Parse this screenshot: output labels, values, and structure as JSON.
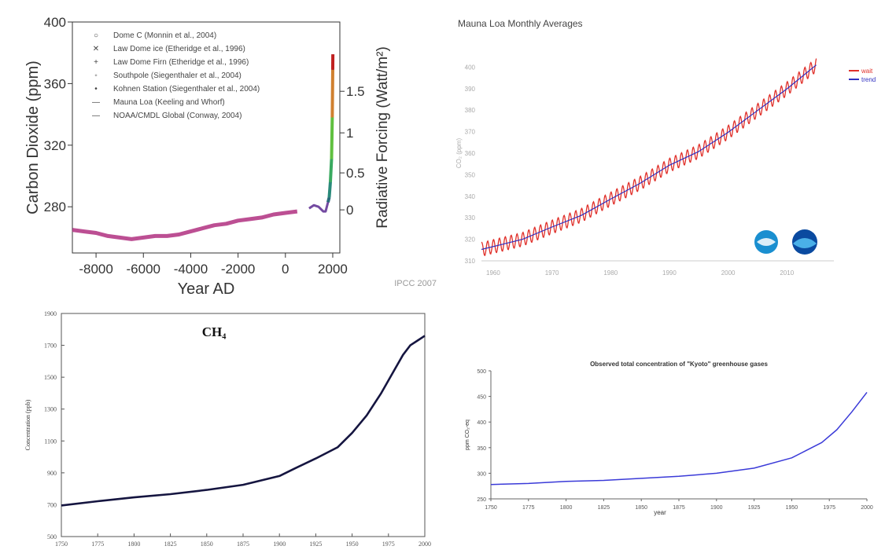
{
  "chart_data": [
    {
      "type": "line",
      "title": "",
      "ylabel": "Carbon Dioxide (ppm)",
      "y2label": "Radiative Forcing (Watt/m²)",
      "xlabel": "Year AD",
      "xlim": [
        -9000,
        2300
      ],
      "ylim": [
        250,
        400
      ],
      "xticks": [
        -8000,
        -6000,
        -4000,
        -2000,
        0,
        2000
      ],
      "yticks": [
        280,
        320,
        360,
        400
      ],
      "y2ticks": [
        "0",
        "0.5",
        "1",
        "1.5"
      ],
      "grid": false,
      "legend_position": "top-left",
      "legend": [
        "Dome C (Monnin et al., 2004)",
        "Law Dome ice (Etheridge et al., 1996)",
        "Law Dome Firn (Etheridge et al., 1996)",
        "Southpole (Siegenthaler et al., 2004)",
        "Kohnen Station (Siegenthaler et al., 2004)",
        "Mauna Loa (Keeling and Whorf)",
        "NOAA/CMDL Global (Conway, 2004)"
      ],
      "source": "IPCC 2007",
      "series": [
        {
          "name": "Dome C (Monnin et al., 2004)",
          "x": [
            -9000,
            -8500,
            -8000,
            -7500,
            -7000,
            -6500,
            -6000,
            -5500,
            -5000,
            -4500,
            -4000,
            -3500,
            -3000,
            -2500,
            -2000,
            -1500,
            -1000,
            -500,
            0,
            500
          ],
          "y": [
            265,
            264,
            263,
            261,
            260,
            259,
            260,
            261,
            261,
            262,
            264,
            266,
            268,
            269,
            271,
            272,
            273,
            275,
            276,
            277
          ]
        },
        {
          "name": "Law Dome ice (Etheridge et al., 1996)",
          "x": [
            1000,
            1200,
            1400,
            1600,
            1700,
            1800,
            1850,
            1900,
            1950,
            1960
          ],
          "y": [
            279,
            281,
            280,
            277,
            277,
            283,
            286,
            296,
            311,
            316
          ]
        },
        {
          "name": "Mauna Loa (Keeling and Whorf)",
          "x": [
            1958,
            1970,
            1980,
            1990,
            2000,
            2005
          ],
          "y": [
            315,
            325,
            338,
            354,
            369,
            379
          ]
        }
      ]
    },
    {
      "type": "line",
      "title": "Mauna Loa Monthly Averages",
      "ylabel": "CO₂ (ppm)",
      "xlabel": "",
      "xlim": [
        1958,
        2018
      ],
      "ylim": [
        310,
        410
      ],
      "xticks": [
        1960,
        1970,
        1980,
        1990,
        2000,
        2010
      ],
      "yticks": [
        310,
        320,
        330,
        340,
        350,
        360,
        370,
        380,
        390,
        400
      ],
      "grid": false,
      "legend_position": "top-right",
      "legend": [
        "wait",
        "trend"
      ],
      "series": [
        {
          "name": "wait",
          "color": "#e0302a",
          "x": [
            1958,
            1960,
            1965,
            1970,
            1975,
            1980,
            1985,
            1990,
            1995,
            2000,
            2005,
            2010,
            2015
          ],
          "y": [
            315.3,
            316.9,
            320.0,
            325.7,
            331.1,
            338.7,
            346.0,
            354.4,
            360.8,
            369.7,
            379.8,
            389.9,
            401.0
          ]
        },
        {
          "name": "trend",
          "color": "#3030c0",
          "x": [
            1958,
            1965,
            1970,
            1975,
            1980,
            1985,
            1990,
            1995,
            2000,
            2005,
            2010,
            2015
          ],
          "y": [
            315.3,
            320.0,
            325.7,
            331.1,
            338.7,
            346.0,
            354.4,
            360.8,
            369.7,
            379.8,
            389.9,
            401.0
          ]
        }
      ]
    },
    {
      "type": "line",
      "title": "CH₄",
      "ylabel": "Concentration (ppb)",
      "xlabel": "",
      "xlim": [
        1750,
        2000
      ],
      "ylim": [
        500,
        1900
      ],
      "xticks": [
        1750,
        1775,
        1800,
        1825,
        1850,
        1875,
        1900,
        1925,
        1950,
        1975,
        2000
      ],
      "yticks": [
        500,
        700,
        900,
        1100,
        1300,
        1500,
        1700,
        1900
      ],
      "grid": false,
      "series": [
        {
          "name": "",
          "color": "#151540",
          "x": [
            1750,
            1775,
            1800,
            1825,
            1850,
            1875,
            1900,
            1910,
            1925,
            1940,
            1950,
            1960,
            1970,
            1980,
            1985,
            1990,
            1995,
            2000
          ],
          "y": [
            695,
            722,
            746,
            766,
            793,
            825,
            880,
            925,
            990,
            1060,
            1150,
            1260,
            1400,
            1560,
            1640,
            1700,
            1730,
            1760
          ]
        }
      ]
    },
    {
      "type": "line",
      "title": "Observed total concentration of \"Kyoto\" greenhouse gases",
      "ylabel": "ppm CO₂-eq",
      "xlabel": "year",
      "xlim": [
        1750,
        2000
      ],
      "ylim": [
        250,
        500
      ],
      "xticks": [
        1750,
        1775,
        1800,
        1825,
        1850,
        1875,
        1900,
        1925,
        1950,
        1975,
        2000
      ],
      "yticks": [
        250,
        300,
        350,
        400,
        450,
        500
      ],
      "grid": false,
      "series": [
        {
          "name": "",
          "color": "#3a3ad8",
          "x": [
            1750,
            1775,
            1800,
            1825,
            1850,
            1875,
            1900,
            1925,
            1950,
            1960,
            1970,
            1980,
            1990,
            2000
          ],
          "y": [
            278,
            280,
            284,
            286,
            290,
            294,
            300,
            310,
            330,
            345,
            360,
            385,
            420,
            458
          ]
        }
      ]
    }
  ]
}
